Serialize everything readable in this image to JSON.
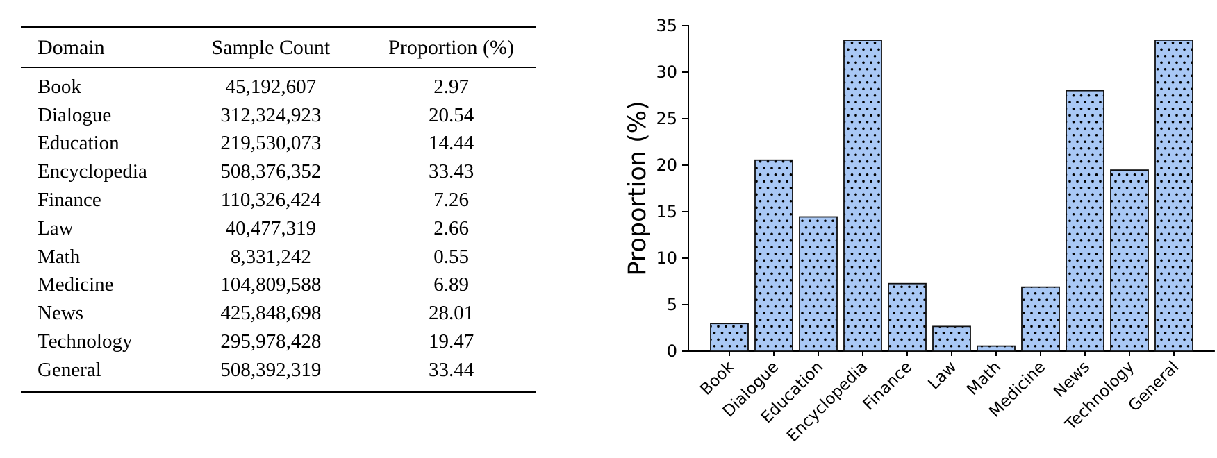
{
  "table": {
    "headers": [
      "Domain",
      "Sample Count",
      "Proportion (%)"
    ],
    "rows": [
      [
        "Book",
        "45,192,607",
        "2.97"
      ],
      [
        "Dialogue",
        "312,324,923",
        "20.54"
      ],
      [
        "Education",
        "219,530,073",
        "14.44"
      ],
      [
        "Encyclopedia",
        "508,376,352",
        "33.43"
      ],
      [
        "Finance",
        "110,326,424",
        "7.26"
      ],
      [
        "Law",
        "40,477,319",
        "2.66"
      ],
      [
        "Math",
        "8,331,242",
        "0.55"
      ],
      [
        "Medicine",
        "104,809,588",
        "6.89"
      ],
      [
        "News",
        "425,848,698",
        "28.01"
      ],
      [
        "Technology",
        "295,978,428",
        "19.47"
      ],
      [
        "General",
        "508,392,319",
        "33.44"
      ]
    ]
  },
  "chart_data": {
    "type": "bar",
    "title": "",
    "xlabel": "",
    "ylabel": "Proportion (%)",
    "categories": [
      "Book",
      "Dialogue",
      "Education",
      "Encyclopedia",
      "Finance",
      "Law",
      "Math",
      "Medicine",
      "News",
      "Technology",
      "General"
    ],
    "values": [
      2.97,
      20.54,
      14.44,
      33.43,
      7.26,
      2.66,
      0.55,
      6.89,
      28.01,
      19.47,
      33.44
    ],
    "ylim": [
      0,
      35
    ],
    "ytick_step": 5,
    "xtick_rotation_deg": 45,
    "grid": false,
    "legend": "none",
    "bar_fill": "#a9c8f5",
    "bar_edge": "#111111",
    "hatch": "dots",
    "hatch_color": "#000000",
    "axis_color": "#000000",
    "text_color": "#000000"
  }
}
